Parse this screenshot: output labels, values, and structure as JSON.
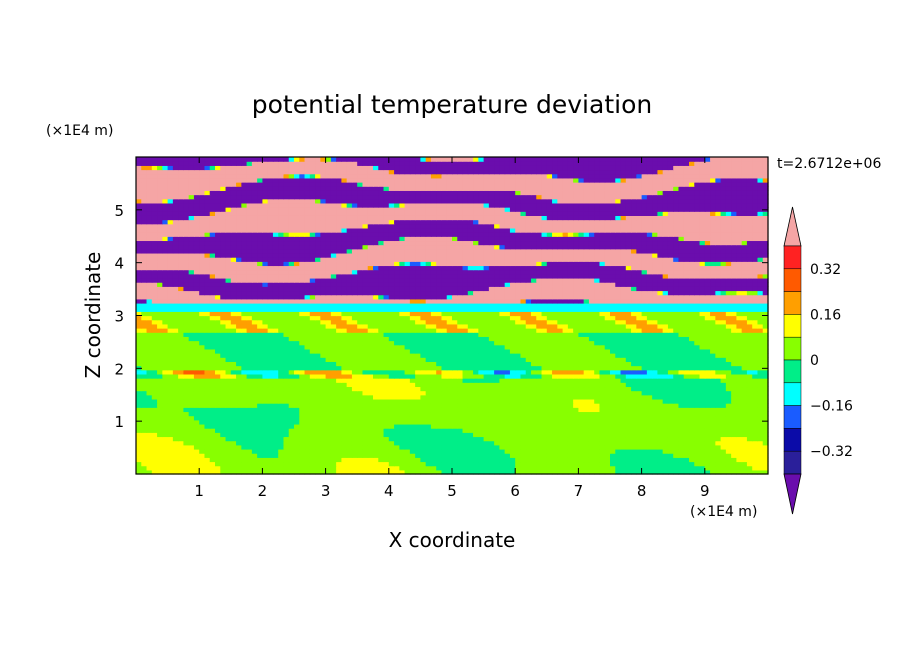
{
  "chart_data": {
    "type": "heatmap",
    "title": "potential temperature deviation",
    "time_label": "t=2.6712e+06",
    "xlabel": "X coordinate",
    "ylabel": "Z coordinate",
    "x_unit": "(×1E4 m)",
    "y_unit": "(×1E4 m)",
    "x_ticks": [
      1,
      2,
      3,
      4,
      5,
      6,
      7,
      8,
      9
    ],
    "y_ticks": [
      1,
      2,
      3,
      4,
      5
    ],
    "xlim": [
      0,
      10
    ],
    "ylim": [
      0,
      6
    ],
    "grid": false,
    "colorbar": {
      "labels": [
        "0.32",
        "0.16",
        "0",
        "−0.16",
        "−0.32"
      ],
      "label_values": [
        0.32,
        0.16,
        0,
        -0.16,
        -0.32
      ],
      "levels": [
        -0.4,
        -0.32,
        -0.24,
        -0.16,
        -0.08,
        0,
        0.08,
        0.16,
        0.24,
        0.32,
        0.4
      ],
      "colors": [
        "#6a0dad",
        "#2a1f9a",
        "#0b0ba8",
        "#1a5cff",
        "#00ffff",
        "#00ee88",
        "#88ff00",
        "#ffff00",
        "#ff9f00",
        "#ff5a00",
        "#ff2222",
        "#f5a5a5"
      ],
      "extend": "both"
    },
    "regions": [
      {
        "z": [
          0,
          2.0
        ],
        "description_value": 0.02
      },
      {
        "z": [
          2.0,
          3.2
        ],
        "description_value": 0.0
      },
      {
        "z": [
          3.2,
          6.0
        ],
        "description_value": "alternating bands of ≥0.4 and ≤−0.4"
      }
    ]
  }
}
